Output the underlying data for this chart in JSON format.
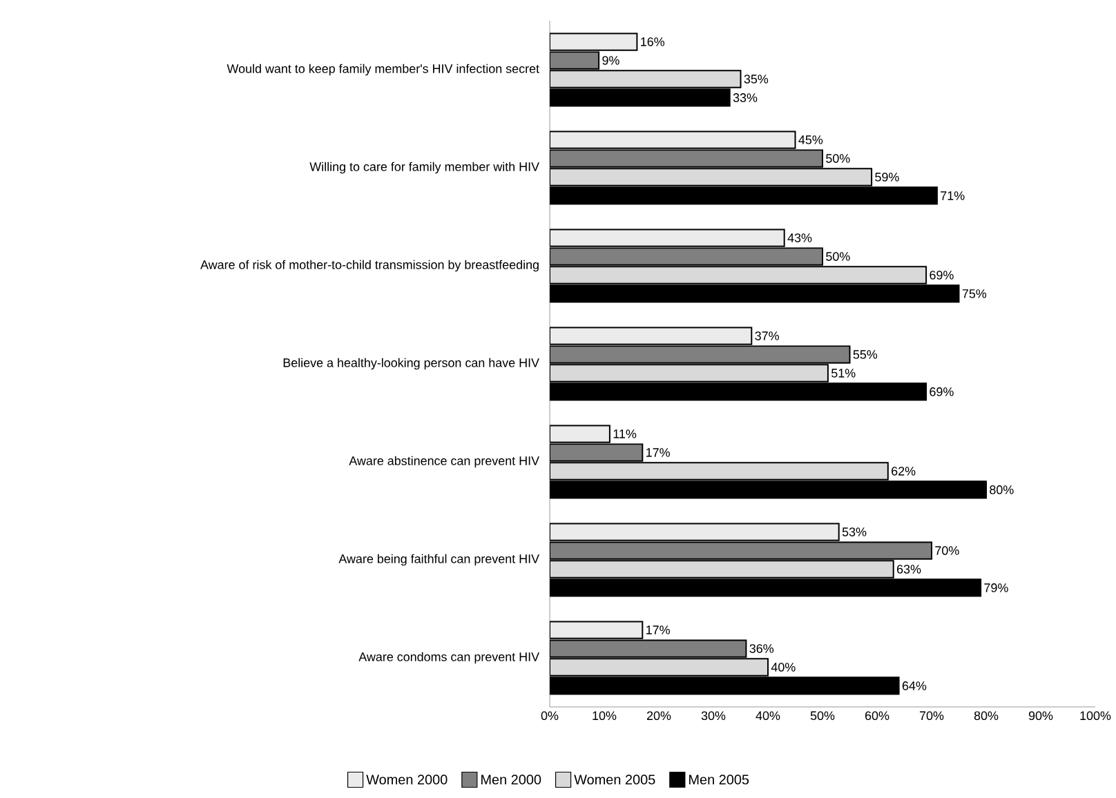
{
  "chart_data": {
    "type": "bar",
    "orientation": "horizontal",
    "categories": [
      "Would want to keep family member's HIV infection secret",
      "Willing to care for family member with HIV",
      "Aware of risk of mother-to-child transmission by breastfeeding",
      "Believe a healthy-looking person can have HIV",
      "Aware abstinence can prevent HIV",
      "Aware being faithful can prevent HIV",
      "Aware condoms can prevent HIV"
    ],
    "series": [
      {
        "name": "Women 2000",
        "color": "#ebebeb",
        "values": [
          16,
          45,
          43,
          37,
          11,
          53,
          17
        ],
        "value_labels": [
          "16%",
          "45%",
          "43%",
          "37%",
          "11%",
          "53%",
          "17%"
        ]
      },
      {
        "name": "Men 2000",
        "color": "#808080",
        "values": [
          9,
          50,
          50,
          55,
          17,
          70,
          36
        ],
        "value_labels": [
          "9%",
          "50%",
          "50%",
          "55%",
          "17%",
          "70%",
          "36%"
        ]
      },
      {
        "name": "Women 2005",
        "color": "#d9d9d9",
        "values": [
          35,
          59,
          69,
          51,
          62,
          63,
          40
        ],
        "value_labels": [
          "35%",
          "59%",
          "69%",
          "51%",
          "62%",
          "63%",
          "40%"
        ]
      },
      {
        "name": "Men 2005",
        "color": "#000000",
        "values": [
          33,
          71,
          75,
          69,
          80,
          79,
          64
        ],
        "value_labels": [
          "33%",
          "71%",
          "75%",
          "69%",
          "80%",
          "79%",
          "64%"
        ]
      }
    ],
    "xlim": [
      0,
      100
    ],
    "xticks": [
      {
        "value": 0,
        "label": "0%"
      },
      {
        "value": 10,
        "label": "10%"
      },
      {
        "value": 20,
        "label": "20%"
      },
      {
        "value": 30,
        "label": "30%"
      },
      {
        "value": 40,
        "label": "40%"
      },
      {
        "value": 50,
        "label": "50%"
      },
      {
        "value": 60,
        "label": "60%"
      },
      {
        "value": 70,
        "label": "70%"
      },
      {
        "value": 80,
        "label": "80%"
      },
      {
        "value": 90,
        "label": "90%"
      },
      {
        "value": 100,
        "label": "100%"
      }
    ],
    "grid": false,
    "legend": "bottom"
  }
}
